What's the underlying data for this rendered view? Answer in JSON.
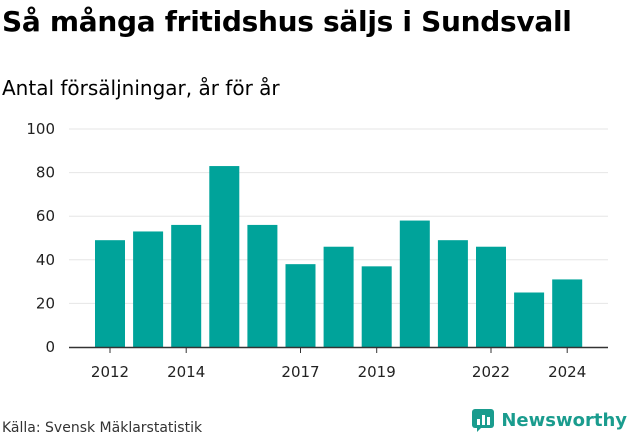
{
  "title": "Så många fritidshus säljs i Sundsvall",
  "subtitle": "Antal försäljningar, år för år",
  "source": "Källa: Svensk Mäklarstatistik",
  "brand": {
    "name": "Newsworthy",
    "icon": "newsworthy-logo-icon",
    "color": "#1a9c8e"
  },
  "colors": {
    "bar": "#00a39a",
    "grid": "#e6e6e6",
    "axis": "#333333"
  },
  "chart_data": {
    "type": "bar",
    "categories": [
      "2012",
      "2013",
      "2014",
      "2015",
      "2016",
      "2017",
      "2018",
      "2019",
      "2020",
      "2021",
      "2022",
      "2023",
      "2024"
    ],
    "values": [
      49,
      53,
      56,
      83,
      56,
      38,
      46,
      37,
      58,
      49,
      46,
      25,
      31
    ],
    "x_tick_labels": [
      "2012",
      "2014",
      "2017",
      "2019",
      "2022",
      "2024"
    ],
    "y_ticks": [
      0,
      20,
      40,
      60,
      80,
      100
    ],
    "ylim": [
      0,
      100
    ],
    "title": "Så många fritidshus säljs i Sundsvall",
    "subtitle": "Antal försäljningar, år för år",
    "xlabel": "",
    "ylabel": "",
    "grid": true,
    "legend": "none"
  }
}
